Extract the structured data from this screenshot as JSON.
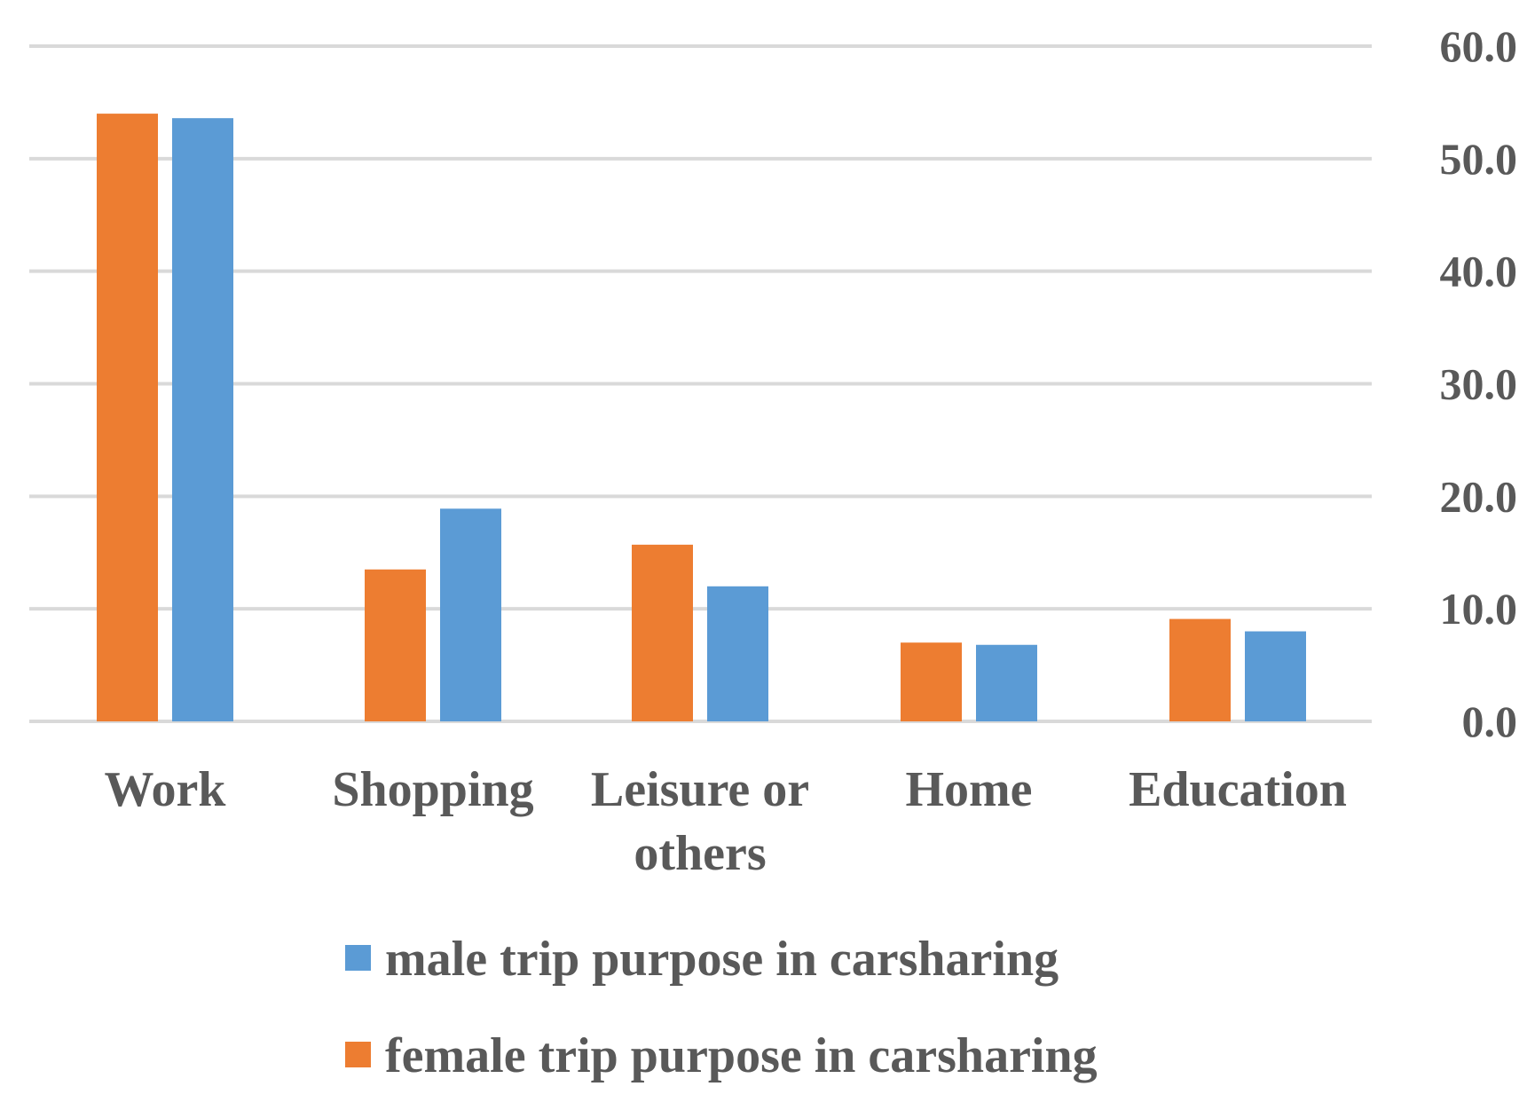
{
  "chart_data": {
    "type": "bar",
    "categories": [
      "Work",
      "Shopping",
      "Leisure or others",
      "Home",
      "Education"
    ],
    "category_lines": [
      [
        "Work"
      ],
      [
        "Shopping"
      ],
      [
        "Leisure or",
        "others"
      ],
      [
        "Home"
      ],
      [
        "Education"
      ]
    ],
    "series": [
      {
        "name": "female trip purpose in carsharing",
        "color": "#ED7D31",
        "values": [
          54.0,
          13.5,
          15.7,
          7.0,
          9.1
        ]
      },
      {
        "name": "male trip purpose in carsharing",
        "color": "#5B9BD5",
        "values": [
          53.6,
          18.9,
          12.0,
          6.8,
          8.0
        ]
      }
    ],
    "y_ticks": [
      "0.0",
      "10.0",
      "20.0",
      "30.0",
      "40.0",
      "50.0",
      "60.0"
    ],
    "ylim": [
      0,
      60
    ],
    "y_axis_position": "right",
    "grid": true,
    "legend": {
      "placement": "bottom",
      "order": [
        "male trip purpose in carsharing",
        "female trip purpose in carsharing"
      ]
    },
    "title": "",
    "xlabel": "",
    "ylabel": ""
  }
}
